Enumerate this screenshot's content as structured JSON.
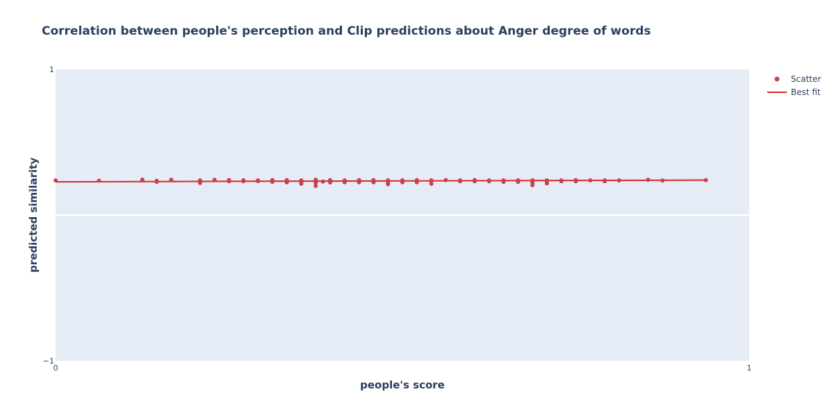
{
  "chart_data": {
    "type": "scatter",
    "title": "Correlation between people's perception and Clip predictions about Anger degree of words",
    "xlabel": "people's score",
    "ylabel": "predicted similarity",
    "xlim": [
      0,
      1
    ],
    "ylim": [
      -1,
      1
    ],
    "x_ticks": [
      "0",
      "1"
    ],
    "y_ticks": [
      "1",
      "−1"
    ],
    "grid": true,
    "legend_position": "top-right",
    "colors": {
      "marker": "#c9404e",
      "line": "#d62728",
      "plot_bg": "#e5ecf6",
      "grid": "#ffffff",
      "text": "#2a3f5f"
    },
    "series": [
      {
        "name": "Scatter",
        "mode": "markers",
        "x": [
          0.0,
          0.0625,
          0.125,
          0.125,
          0.1458,
          0.1458,
          0.1667,
          0.2083,
          0.2083,
          0.2083,
          0.2292,
          0.25,
          0.25,
          0.2708,
          0.2708,
          0.2917,
          0.2917,
          0.3125,
          0.3125,
          0.3125,
          0.3333,
          0.3333,
          0.3333,
          0.3542,
          0.3542,
          0.3542,
          0.3542,
          0.375,
          0.375,
          0.375,
          0.375,
          0.3854,
          0.3958,
          0.3958,
          0.3958,
          0.4167,
          0.4167,
          0.4167,
          0.4375,
          0.4375,
          0.4375,
          0.4583,
          0.4583,
          0.4583,
          0.4792,
          0.4792,
          0.4792,
          0.4792,
          0.5,
          0.5,
          0.5,
          0.5208,
          0.5208,
          0.5208,
          0.5417,
          0.5417,
          0.5417,
          0.5625,
          0.5833,
          0.5833,
          0.6042,
          0.6042,
          0.625,
          0.625,
          0.6458,
          0.6458,
          0.6458,
          0.6667,
          0.6667,
          0.6667,
          0.6875,
          0.6875,
          0.6875,
          0.6875,
          0.7083,
          0.7083,
          0.7083,
          0.7292,
          0.7292,
          0.75,
          0.75,
          0.7708,
          0.7917,
          0.7917,
          0.8125,
          0.8542,
          0.875,
          0.9375
        ],
        "y": [
          0.238,
          0.236,
          0.243,
          0.238,
          0.235,
          0.228,
          0.242,
          0.238,
          0.228,
          0.22,
          0.242,
          0.24,
          0.232,
          0.239,
          0.232,
          0.238,
          0.233,
          0.24,
          0.235,
          0.228,
          0.24,
          0.232,
          0.225,
          0.238,
          0.232,
          0.222,
          0.215,
          0.242,
          0.232,
          0.22,
          0.2,
          0.23,
          0.24,
          0.232,
          0.224,
          0.238,
          0.232,
          0.225,
          0.24,
          0.232,
          0.225,
          0.24,
          0.232,
          0.225,
          0.238,
          0.232,
          0.222,
          0.212,
          0.238,
          0.232,
          0.225,
          0.24,
          0.232,
          0.225,
          0.238,
          0.232,
          0.215,
          0.24,
          0.238,
          0.232,
          0.24,
          0.232,
          0.238,
          0.232,
          0.238,
          0.232,
          0.228,
          0.238,
          0.232,
          0.228,
          0.238,
          0.232,
          0.222,
          0.205,
          0.238,
          0.232,
          0.218,
          0.238,
          0.232,
          0.24,
          0.232,
          0.238,
          0.238,
          0.232,
          0.238,
          0.242,
          0.237,
          0.24
        ]
      },
      {
        "name": "Best fit",
        "mode": "lines",
        "x": [
          0.0,
          0.9375
        ],
        "y": [
          0.228,
          0.24
        ]
      }
    ]
  }
}
